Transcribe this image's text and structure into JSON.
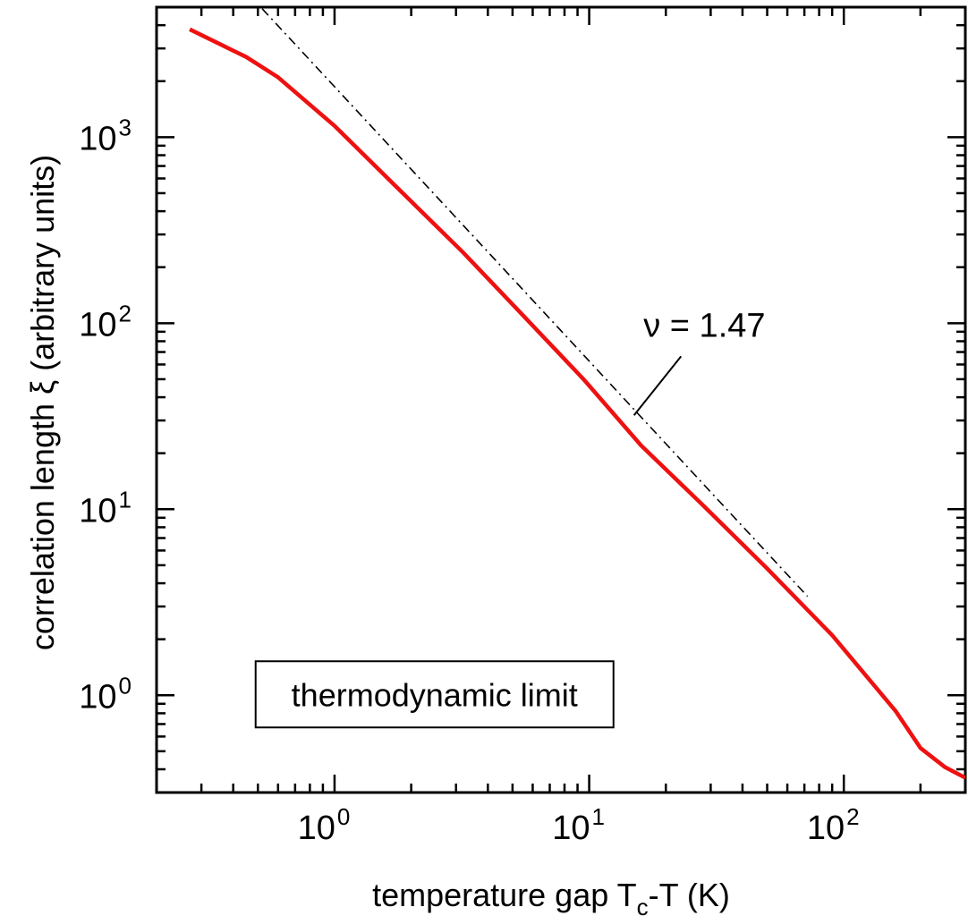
{
  "chart_data": {
    "type": "line",
    "scale": {
      "x": "log",
      "y": "log"
    },
    "xlabel": {
      "main": "temperature gap T",
      "sub": "c",
      "tail": "-T  (K)"
    },
    "ylabel": "correlation length ξ  (arbitrary units)",
    "xlim": [
      0.2,
      300
    ],
    "ylim": [
      0.3,
      5000
    ],
    "x_ticks": [
      {
        "value": 1,
        "base": "10",
        "exp": "0"
      },
      {
        "value": 10,
        "base": "10",
        "exp": "1"
      },
      {
        "value": 100,
        "base": "10",
        "exp": "2"
      }
    ],
    "y_ticks": [
      {
        "value": 1,
        "base": "10",
        "exp": "0"
      },
      {
        "value": 10,
        "base": "10",
        "exp": "1"
      },
      {
        "value": 100,
        "base": "10",
        "exp": "2"
      },
      {
        "value": 1000,
        "base": "10",
        "exp": "3"
      }
    ],
    "series": [
      {
        "style": "solid",
        "color": "#ee1111",
        "x": [
          0.27,
          0.45,
          0.6,
          1.0,
          1.8,
          3.2,
          5.5,
          9.5,
          16,
          28,
          50,
          90,
          160,
          200,
          250,
          300
        ],
        "y": [
          3800,
          2700,
          2100,
          1150,
          520,
          240,
          110,
          50,
          22,
          10.5,
          4.8,
          2.1,
          0.82,
          0.52,
          0.41,
          0.36
        ]
      },
      {
        "style": "dash-dot",
        "color": "#000000",
        "x": [
          0.52,
          72
        ],
        "y": [
          4900,
          3.4
        ]
      }
    ],
    "annotations": [
      {
        "text": "ν = 1.47",
        "x": 20,
        "y": 100,
        "pointer_to": {
          "x": 15,
          "y": 32
        }
      },
      {
        "text": "thermodynamic limit",
        "boxed": true,
        "x": 1.1,
        "y": 1.0
      }
    ],
    "grid": false,
    "legend": "none"
  }
}
